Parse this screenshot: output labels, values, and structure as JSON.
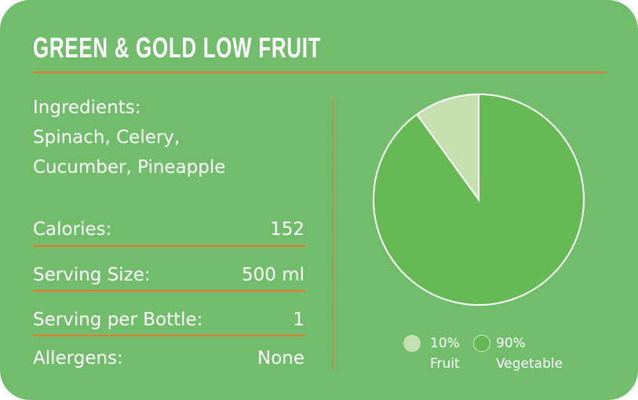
{
  "title": "GREEN & GOLD LOW FRUIT",
  "ingredients": {
    "label": "Ingredients:",
    "line1": "Spinach, Celery,",
    "line2": "Cucumber, Pineapple"
  },
  "facts": [
    {
      "label": "Calories:",
      "value": "152"
    },
    {
      "label": "Serving Size:",
      "value": "500 ml"
    },
    {
      "label": "Serving per Bottle:",
      "value": "1"
    },
    {
      "label": "Allergens:",
      "value": "None"
    }
  ],
  "colors": {
    "background": "#72bd6c",
    "accent": "#e8762e",
    "fruit": "#c5e0ae",
    "vegetable": "#66b954"
  },
  "chart_data": {
    "type": "pie",
    "slices": [
      {
        "name": "Fruit",
        "value": 10,
        "label": "10%",
        "color": "#c5e0ae"
      },
      {
        "name": "Vegetable",
        "value": 90,
        "label": "90%",
        "color": "#66b954"
      }
    ],
    "legend_placement": "bottom"
  }
}
